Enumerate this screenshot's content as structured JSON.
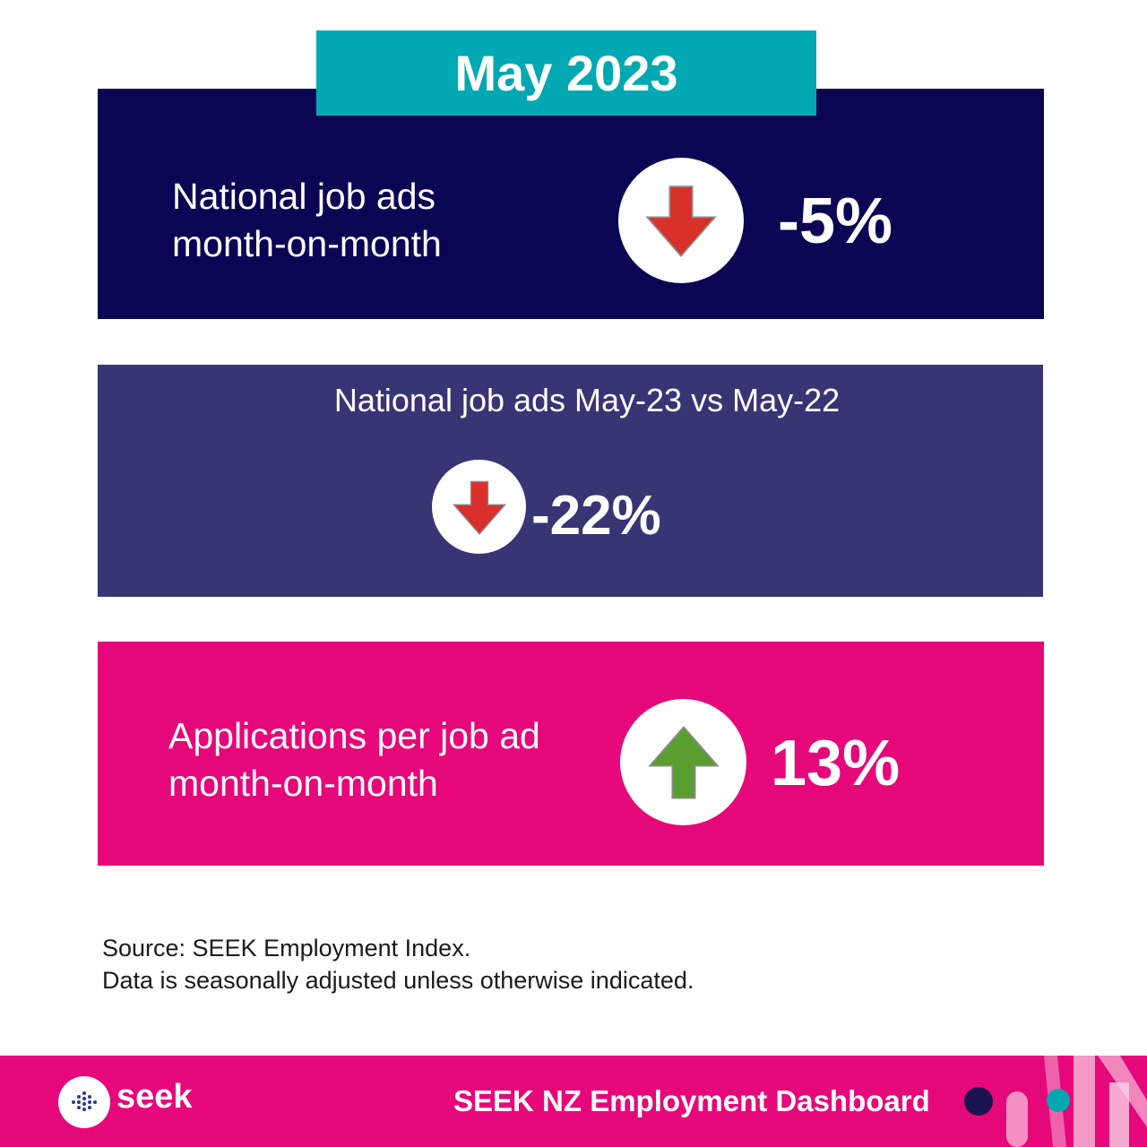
{
  "header": {
    "month_label": "May 2023"
  },
  "card_monthly": {
    "label_line1": "National job ads",
    "label_line2": "month-on-month",
    "value": "-5%",
    "icon": "arrow-down-icon",
    "color": "#0a0654"
  },
  "card_yearly": {
    "title": "National job ads May-23 vs May-22",
    "value": "-22%",
    "icon": "arrow-down-icon",
    "color": "#383575"
  },
  "card_applications": {
    "label_line1": "Applications per job ad",
    "label_line2": "month-on-month",
    "value": "13%",
    "icon": "arrow-up-icon",
    "color": "#e6077a"
  },
  "source": {
    "line1": "Source: SEEK Employment Index.",
    "line2": "Data is seasonally adjusted unless otherwise indicated."
  },
  "footer": {
    "logo_text": "seek",
    "title": "SEEK NZ Employment Dashboard"
  },
  "colors": {
    "accent_teal": "#00a9b1",
    "arrow_down": "#d9302a",
    "arrow_up": "#5a9e2f"
  }
}
